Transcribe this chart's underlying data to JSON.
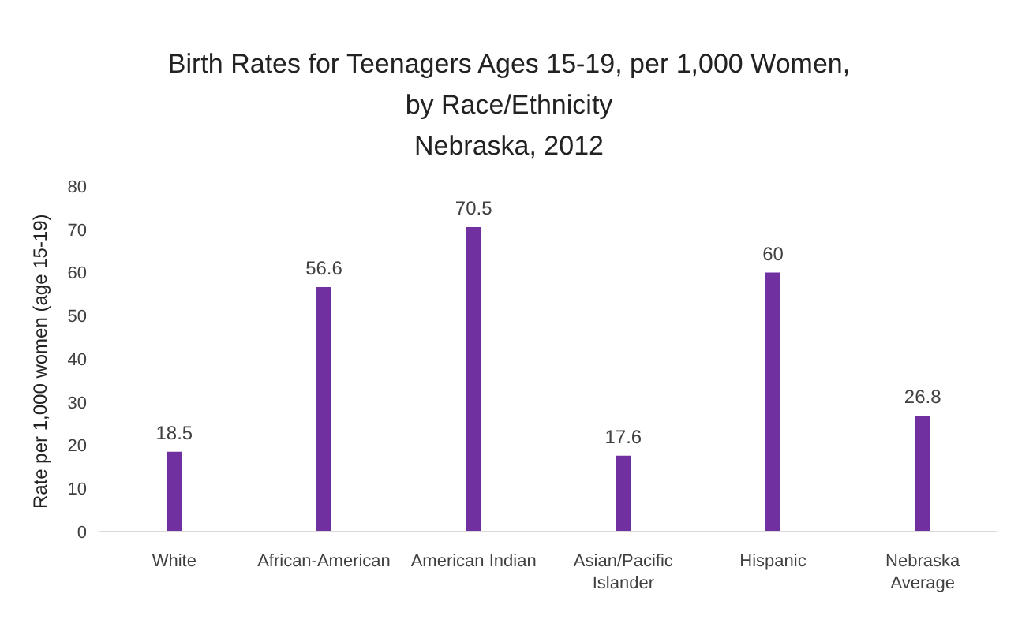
{
  "chart_data": {
    "type": "bar",
    "title": "Birth Rates for Teenagers Ages 15-19, per 1,000 Women, by Race/Ethnicity",
    "subtitle": "Nebraska, 2012",
    "ylabel": "Rate per 1,000 women (age 15-19)",
    "categories": [
      "White",
      "African-American",
      "American Indian",
      "Asian/Pacific Islander",
      "Hispanic",
      "Nebraska Average"
    ],
    "values": [
      18.5,
      56.6,
      70.5,
      17.6,
      60,
      26.8
    ],
    "color": "#7030a0",
    "data_labels": true,
    "grid": false,
    "legend": false,
    "ylim": [
      0,
      80
    ],
    "yticks": [
      0,
      10,
      20,
      30,
      40,
      50,
      60,
      70,
      80
    ]
  }
}
